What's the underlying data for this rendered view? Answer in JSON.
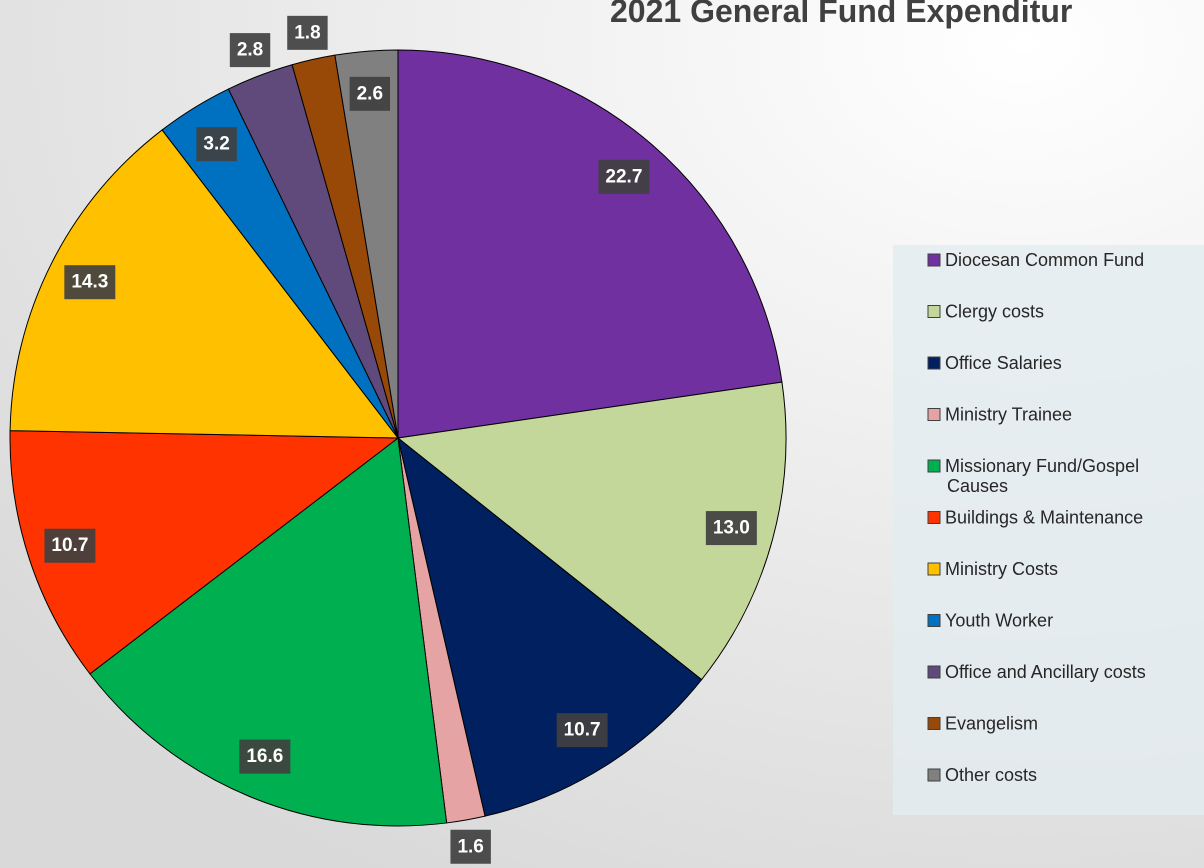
{
  "chart_data": {
    "type": "pie",
    "title": "2021 General Fund Expenditur",
    "categories": [
      "Diocesan Common Fund",
      "Clergy costs",
      "Office Salaries",
      "Ministry Trainee",
      "Missionary Fund/Gospel Causes",
      "Buildings & Maintenance",
      "Ministry Costs",
      "Youth Worker",
      "Office and Ancillary costs",
      "Evangelism",
      "Other costs"
    ],
    "values": [
      22.7,
      13.0,
      10.7,
      1.6,
      16.6,
      10.7,
      14.3,
      3.2,
      2.8,
      1.8,
      2.6
    ],
    "value_labels": [
      "22.7",
      "13.0",
      "10.7",
      "1.6",
      "16.6",
      "10.7",
      "14.3",
      "3.2",
      "2.8",
      "1.8",
      "2.6"
    ],
    "colors": [
      "#7030a0",
      "#c4d79b",
      "#002060",
      "#e6a3a3",
      "#00b050",
      "#ff3300",
      "#ffc000",
      "#0070c0",
      "#604a7b",
      "#984807",
      "#808080"
    ],
    "legend": "right"
  }
}
